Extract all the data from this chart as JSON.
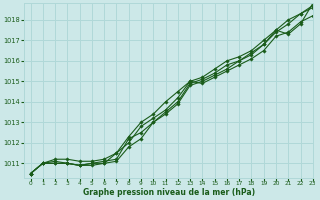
{
  "xlabel": "Graphe pression niveau de la mer (hPa)",
  "xlim": [
    -0.5,
    23
  ],
  "ylim": [
    1010.3,
    1018.8
  ],
  "yticks": [
    1011,
    1012,
    1013,
    1014,
    1015,
    1016,
    1017,
    1018
  ],
  "xticks": [
    0,
    1,
    2,
    3,
    4,
    5,
    6,
    7,
    8,
    9,
    10,
    11,
    12,
    13,
    14,
    15,
    16,
    17,
    18,
    19,
    20,
    21,
    22,
    23
  ],
  "bg_color": "#cce8e8",
  "grid_color": "#b0d8d8",
  "line_color": "#1a5c1a",
  "series": [
    [
      1010.5,
      1011.0,
      1011.0,
      1011.0,
      1010.9,
      1011.0,
      1011.0,
      1011.5,
      1012.0,
      1012.8,
      1013.2,
      1013.6,
      1014.2,
      1015.0,
      1014.9,
      1015.2,
      1015.5,
      1015.8,
      1016.1,
      1016.5,
      1017.2,
      1017.4,
      1017.9,
      1018.2
    ],
    [
      1010.5,
      1011.0,
      1011.0,
      1011.0,
      1010.9,
      1011.0,
      1011.1,
      1011.2,
      1012.2,
      1012.5,
      1013.0,
      1013.4,
      1013.9,
      1014.8,
      1015.0,
      1015.3,
      1015.6,
      1016.0,
      1016.3,
      1016.8,
      1017.4,
      1017.8,
      1018.3,
      1018.6
    ],
    [
      1010.5,
      1011.0,
      1011.1,
      1011.0,
      1010.9,
      1010.9,
      1011.0,
      1011.1,
      1011.8,
      1012.2,
      1013.0,
      1013.5,
      1014.0,
      1014.9,
      1015.1,
      1015.4,
      1015.8,
      1016.0,
      1016.4,
      1016.8,
      1017.5,
      1018.0,
      1018.3,
      1018.7
    ],
    [
      1010.5,
      1011.0,
      1011.2,
      1011.2,
      1011.1,
      1011.1,
      1011.2,
      1011.5,
      1012.3,
      1013.0,
      1013.4,
      1014.0,
      1014.5,
      1015.0,
      1015.2,
      1015.6,
      1016.0,
      1016.2,
      1016.5,
      1017.0,
      1017.5,
      1017.3,
      1017.8,
      1018.8
    ]
  ]
}
